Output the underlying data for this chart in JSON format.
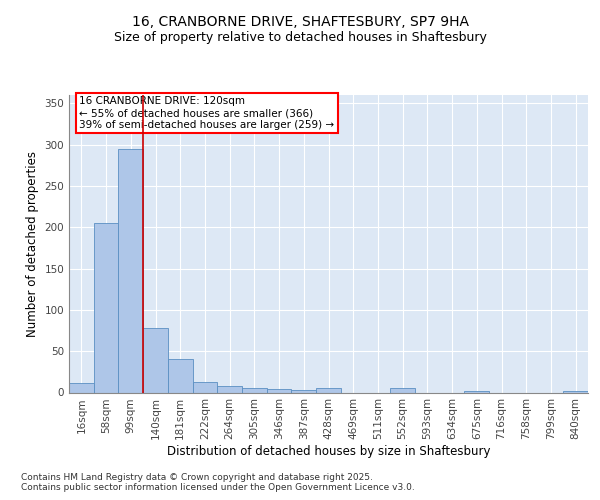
{
  "title_line1": "16, CRANBORNE DRIVE, SHAFTESBURY, SP7 9HA",
  "title_line2": "Size of property relative to detached houses in Shaftesbury",
  "xlabel": "Distribution of detached houses by size in Shaftesbury",
  "ylabel": "Number of detached properties",
  "bar_labels": [
    "16sqm",
    "58sqm",
    "99sqm",
    "140sqm",
    "181sqm",
    "222sqm",
    "264sqm",
    "305sqm",
    "346sqm",
    "387sqm",
    "428sqm",
    "469sqm",
    "511sqm",
    "552sqm",
    "593sqm",
    "634sqm",
    "675sqm",
    "716sqm",
    "758sqm",
    "799sqm",
    "840sqm"
  ],
  "bar_values": [
    12,
    205,
    295,
    78,
    40,
    13,
    8,
    6,
    4,
    3,
    5,
    0,
    0,
    6,
    0,
    0,
    2,
    0,
    0,
    0,
    2
  ],
  "bar_color": "#aec6e8",
  "bar_edge_color": "#5a8fc2",
  "bg_color": "#dde8f5",
  "grid_color": "#ffffff",
  "property_line_color": "#cc0000",
  "annotation_text": "16 CRANBORNE DRIVE: 120sqm\n← 55% of detached houses are smaller (366)\n39% of semi-detached houses are larger (259) →",
  "ylim": [
    0,
    360
  ],
  "yticks": [
    0,
    50,
    100,
    150,
    200,
    250,
    300,
    350
  ],
  "footnote": "Contains HM Land Registry data © Crown copyright and database right 2025.\nContains public sector information licensed under the Open Government Licence v3.0.",
  "title_fontsize": 10,
  "subtitle_fontsize": 9,
  "axis_label_fontsize": 8.5,
  "tick_fontsize": 7.5,
  "footnote_fontsize": 6.5
}
